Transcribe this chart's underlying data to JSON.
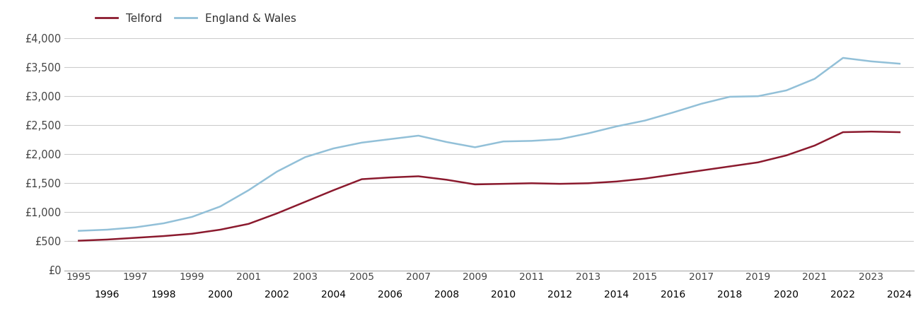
{
  "telford_years": [
    1995,
    1996,
    1997,
    1998,
    1999,
    2000,
    2001,
    2002,
    2003,
    2004,
    2005,
    2006,
    2007,
    2008,
    2009,
    2010,
    2011,
    2012,
    2013,
    2014,
    2015,
    2016,
    2017,
    2018,
    2019,
    2020,
    2021,
    2022,
    2023,
    2024
  ],
  "telford_values": [
    510,
    530,
    560,
    590,
    630,
    700,
    800,
    980,
    1180,
    1380,
    1570,
    1600,
    1620,
    1560,
    1480,
    1490,
    1500,
    1490,
    1500,
    1530,
    1580,
    1650,
    1720,
    1790,
    1860,
    1980,
    2150,
    2380,
    2390,
    2380
  ],
  "ew_years": [
    1995,
    1996,
    1997,
    1998,
    1999,
    2000,
    2001,
    2002,
    2003,
    2004,
    2005,
    2006,
    2007,
    2008,
    2009,
    2010,
    2011,
    2012,
    2013,
    2014,
    2015,
    2016,
    2017,
    2018,
    2019,
    2020,
    2021,
    2022,
    2023,
    2024
  ],
  "ew_values": [
    680,
    700,
    740,
    810,
    920,
    1100,
    1380,
    1700,
    1950,
    2100,
    2200,
    2260,
    2320,
    2210,
    2120,
    2220,
    2230,
    2260,
    2360,
    2480,
    2580,
    2720,
    2870,
    2990,
    3000,
    3100,
    3300,
    3660,
    3600,
    3560
  ],
  "telford_color": "#8b1a2e",
  "ew_color": "#92c0d8",
  "telford_label": "Telford",
  "ew_label": "England & Wales",
  "ylim": [
    0,
    4000
  ],
  "yticks": [
    0,
    500,
    1000,
    1500,
    2000,
    2500,
    3000,
    3500,
    4000
  ],
  "ytick_labels": [
    "£0",
    "£500",
    "£1,000",
    "£1,500",
    "£2,000",
    "£2,500",
    "£3,000",
    "£3,500",
    "£4,000"
  ],
  "xlim_min": 1994.5,
  "xlim_max": 2024.5,
  "line_width": 1.8,
  "bg_color": "#ffffff",
  "grid_color": "#cccccc",
  "odd_years": [
    1995,
    1997,
    1999,
    2001,
    2003,
    2005,
    2007,
    2009,
    2011,
    2013,
    2015,
    2017,
    2019,
    2021,
    2023
  ],
  "even_years": [
    1996,
    1998,
    2000,
    2002,
    2004,
    2006,
    2008,
    2010,
    2012,
    2014,
    2016,
    2018,
    2020,
    2022,
    2024
  ]
}
